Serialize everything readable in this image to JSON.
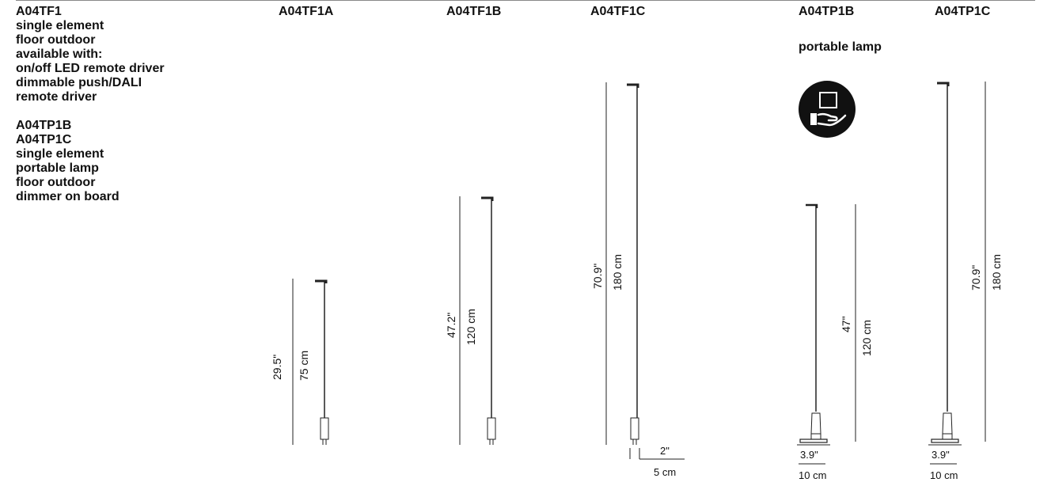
{
  "description": {
    "group1": [
      "A04TF1",
      "single element",
      "floor outdoor",
      "available with:",
      "on/off LED remote driver",
      "dimmable push/DALI",
      "remote driver"
    ],
    "group2": [
      "A04TP1B",
      "A04TP1C",
      "single element",
      "portable lamp",
      "floor outdoor",
      "dimmer on board"
    ]
  },
  "products": [
    {
      "code": "A04TF1A",
      "inch": "29.5\"",
      "cm": "75 cm"
    },
    {
      "code": "A04TF1B",
      "inch": "47.2\"",
      "cm": "120 cm"
    },
    {
      "code": "A04TF1C",
      "inch": "70.9\"",
      "cm": "180 cm",
      "base_inch": "2\"",
      "base_cm": "5 cm"
    },
    {
      "code": "A04TP1B",
      "subtitle": "portable lamp",
      "inch": "47\"",
      "cm": "120 cm",
      "base_inch": "3.9\"",
      "base_cm": "10 cm"
    },
    {
      "code": "A04TP1C",
      "inch": "70.9\"",
      "cm": "180 cm",
      "base_inch": "3.9\"",
      "base_cm": "10 cm"
    }
  ],
  "icon": {
    "name": "hand-carry-icon",
    "color": "#111111"
  }
}
